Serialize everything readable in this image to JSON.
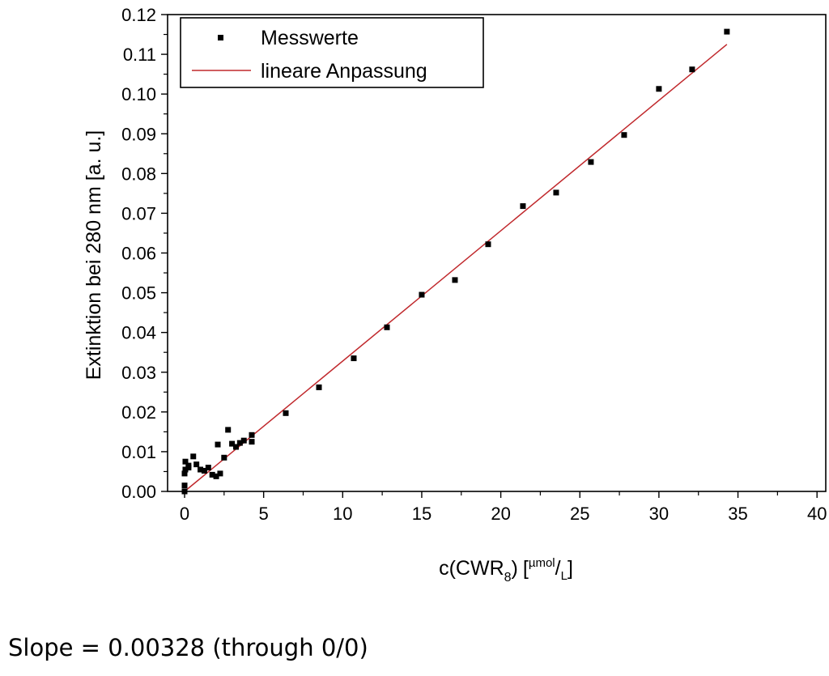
{
  "chart_data": {
    "type": "scatter",
    "title": "",
    "xlabel": {
      "main": "c(CWR",
      "subscript": "8",
      "close": ")",
      "unit_open": "[",
      "unit_numerator": "µmol",
      "unit_slash": "/",
      "unit_denominator": "L",
      "unit_close": "]"
    },
    "ylabel": "Extinktion bei 280 nm [a. u.]",
    "xlim": [
      0,
      40
    ],
    "ylim": [
      0,
      0.12
    ],
    "x_ticks": [
      0,
      5,
      10,
      15,
      20,
      25,
      30,
      35,
      40
    ],
    "y_ticks": [
      0.0,
      0.01,
      0.02,
      0.03,
      0.04,
      0.05,
      0.06,
      0.07,
      0.08,
      0.09,
      0.1,
      0.11,
      0.12
    ],
    "x_tick_labels": [
      "0",
      "5",
      "10",
      "15",
      "20",
      "25",
      "30",
      "35",
      "40"
    ],
    "y_tick_labels": [
      "0.00",
      "0.01",
      "0.02",
      "0.03",
      "0.04",
      "0.05",
      "0.06",
      "0.07",
      "0.08",
      "0.09",
      "0.10",
      "0.11",
      "0.12"
    ],
    "grid": false,
    "legend_position": "top-left",
    "series": [
      {
        "name": "Messwerte",
        "kind": "scatter",
        "marker": "square",
        "color": "#000000",
        "points": [
          [
            0.0,
            0.0
          ],
          [
            0.0,
            0.0015
          ],
          [
            0.0,
            0.0045
          ],
          [
            0.05,
            0.0055
          ],
          [
            0.05,
            0.0075
          ],
          [
            0.25,
            0.006
          ],
          [
            0.25,
            0.0065
          ],
          [
            0.55,
            0.0088
          ],
          [
            0.75,
            0.0068
          ],
          [
            1.0,
            0.0055
          ],
          [
            1.25,
            0.0052
          ],
          [
            1.5,
            0.006
          ],
          [
            1.75,
            0.0042
          ],
          [
            2.0,
            0.0038
          ],
          [
            2.25,
            0.0045
          ],
          [
            2.1,
            0.0118
          ],
          [
            2.5,
            0.0085
          ],
          [
            2.75,
            0.0155
          ],
          [
            3.0,
            0.012
          ],
          [
            3.25,
            0.0112
          ],
          [
            3.5,
            0.0122
          ],
          [
            3.75,
            0.0128
          ],
          [
            4.25,
            0.0125
          ],
          [
            4.25,
            0.0142
          ],
          [
            6.4,
            0.0197
          ],
          [
            8.5,
            0.0262
          ],
          [
            10.7,
            0.0335
          ],
          [
            12.8,
            0.0413
          ],
          [
            15.0,
            0.0495
          ],
          [
            17.1,
            0.0532
          ],
          [
            19.2,
            0.0622
          ],
          [
            21.4,
            0.0718
          ],
          [
            23.5,
            0.0752
          ],
          [
            25.7,
            0.0829
          ],
          [
            27.8,
            0.0897
          ],
          [
            30.0,
            0.1013
          ],
          [
            32.1,
            0.1062
          ],
          [
            34.3,
            0.1157
          ]
        ]
      },
      {
        "name": "lineare Anpassung",
        "kind": "line",
        "color": "#c0282c",
        "slope": 0.00328,
        "intercept": 0,
        "x_range": [
          0,
          34.3
        ]
      }
    ]
  },
  "annotation": {
    "slope_text": "Slope = 0.00328 (through 0/0)"
  }
}
